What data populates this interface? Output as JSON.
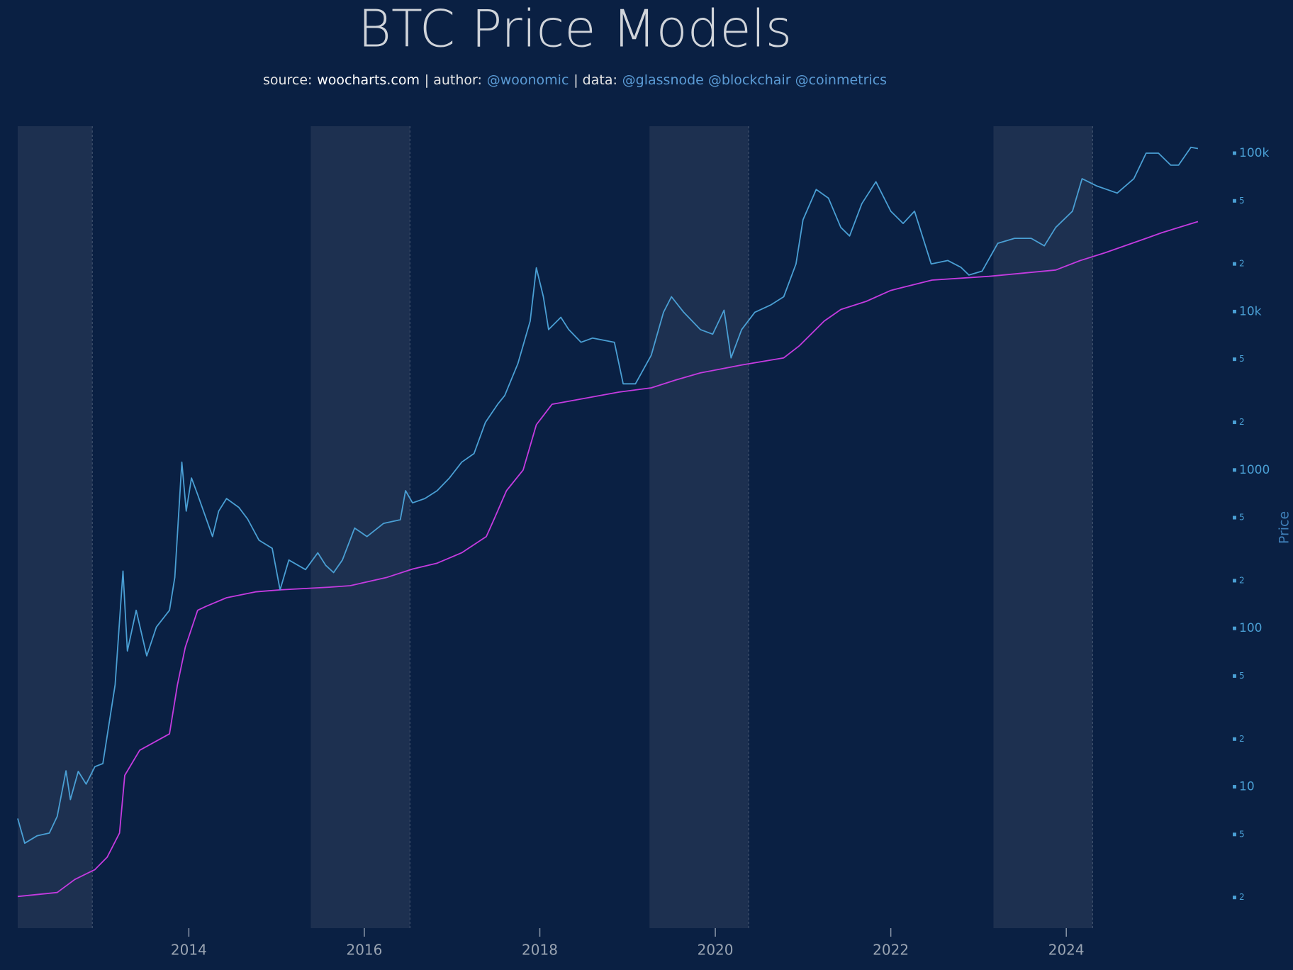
{
  "chart_data": {
    "type": "line",
    "title": "BTC Price Models",
    "subtitle": [
      {
        "text": "source:",
        "color": "#e6e6e6"
      },
      {
        "text": "woocharts.com",
        "color": "#ffffff"
      },
      {
        "text": "| author:",
        "color": "#e6e6e6"
      },
      {
        "text": "@woonomic",
        "color": "#5b9bd5"
      },
      {
        "text": "| data:",
        "color": "#e6e6e6"
      },
      {
        "text": "@glassnode @blockchair @coinmetrics",
        "color": "#5b9bd5"
      }
    ],
    "ylabel": "Price",
    "log_y": true,
    "grid": false,
    "xlim": [
      2012.05,
      2025.8
    ],
    "xticks": [
      2014,
      2016,
      2018,
      2020,
      2022,
      2024
    ],
    "ylim": [
      1.28,
      148000
    ],
    "yticks": [
      2,
      5,
      10,
      {
        "value": 20,
        "label": "2"
      },
      {
        "value": 50,
        "label": "5"
      },
      100,
      {
        "value": 200,
        "label": "2"
      },
      {
        "value": 500,
        "label": "5"
      },
      1000,
      {
        "value": 2000,
        "label": "2"
      },
      {
        "value": 5000,
        "label": "5"
      },
      {
        "value": 10000,
        "label": "10k"
      },
      {
        "value": 20000,
        "label": "2"
      },
      {
        "value": 50000,
        "label": "5"
      },
      {
        "value": 100000,
        "label": "100k"
      }
    ],
    "shaded_ranges": [
      [
        2012.05,
        2012.9
      ],
      [
        2015.39,
        2016.52
      ],
      [
        2019.25,
        2020.38
      ],
      [
        2023.17,
        2024.3
      ]
    ],
    "shade_color": "#1d3050",
    "series": [
      {
        "color": "#4a9fd4",
        "x": [
          2012.05,
          2012.13,
          2012.27,
          2012.41,
          2012.5,
          2012.6,
          2012.65,
          2012.74,
          2012.83,
          2012.93,
          2013.02,
          2013.16,
          2013.25,
          2013.3,
          2013.4,
          2013.52,
          2013.63,
          2013.78,
          2013.84,
          2013.92,
          2013.97,
          2014.03,
          2014.1,
          2014.27,
          2014.34,
          2014.43,
          2014.57,
          2014.67,
          2014.8,
          2014.95,
          2015.04,
          2015.14,
          2015.33,
          2015.47,
          2015.56,
          2015.65,
          2015.75,
          2015.89,
          2016.03,
          2016.22,
          2016.41,
          2016.47,
          2016.55,
          2016.69,
          2016.83,
          2016.97,
          2017.11,
          2017.25,
          2017.38,
          2017.52,
          2017.6,
          2017.75,
          2017.89,
          2017.96,
          2018.04,
          2018.1,
          2018.24,
          2018.33,
          2018.47,
          2018.6,
          2018.85,
          2018.95,
          2019.09,
          2019.27,
          2019.41,
          2019.5,
          2019.64,
          2019.83,
          2019.97,
          2020.1,
          2020.18,
          2020.3,
          2020.45,
          2020.63,
          2020.78,
          2020.92,
          2021.0,
          2021.15,
          2021.29,
          2021.43,
          2021.53,
          2021.67,
          2021.83,
          2022.0,
          2022.14,
          2022.27,
          2022.46,
          2022.65,
          2022.8,
          2022.89,
          2023.04,
          2023.22,
          2023.41,
          2023.6,
          2023.75,
          2023.88,
          2024.07,
          2024.18,
          2024.35,
          2024.58,
          2024.77,
          2024.91,
          2025.05,
          2025.19,
          2025.28,
          2025.42,
          2025.5
        ],
        "values": [
          6.3,
          4.4,
          4.9,
          5.1,
          6.5,
          12.6,
          8.3,
          12.5,
          10.4,
          13.4,
          14,
          44,
          230,
          72,
          130,
          67,
          102,
          130,
          210,
          1120,
          550,
          890,
          700,
          380,
          550,
          660,
          580,
          490,
          360,
          320,
          175,
          270,
          235,
          300,
          250,
          225,
          270,
          430,
          380,
          460,
          485,
          740,
          620,
          660,
          740,
          890,
          1120,
          1270,
          2000,
          2600,
          2950,
          4700,
          8700,
          18900,
          12400,
          7700,
          9200,
          7700,
          6400,
          6800,
          6400,
          3500,
          3500,
          5300,
          9900,
          12400,
          9900,
          7700,
          7200,
          10200,
          5100,
          7700,
          9900,
          11000,
          12400,
          20000,
          38000,
          59000,
          52000,
          34000,
          30000,
          48000,
          66000,
          43000,
          36000,
          43000,
          20000,
          21000,
          19000,
          17000,
          18000,
          27000,
          29000,
          29000,
          26000,
          34000,
          43000,
          69000,
          62000,
          56000,
          69000,
          100000,
          100000,
          84000,
          84000,
          109000,
          107000
        ]
      },
      {
        "color": "#c43be0",
        "x": [
          2012.05,
          2012.5,
          2012.7,
          2012.93,
          2013.07,
          2013.21,
          2013.27,
          2013.44,
          2013.78,
          2013.87,
          2013.96,
          2014.1,
          2014.2,
          2014.43,
          2014.76,
          2015.04,
          2015.6,
          2015.84,
          2016.26,
          2016.55,
          2016.83,
          2017.11,
          2017.39,
          2017.48,
          2017.62,
          2017.81,
          2017.96,
          2018.14,
          2018.43,
          2018.9,
          2019.27,
          2019.55,
          2019.83,
          2020.3,
          2020.78,
          2020.96,
          2021.24,
          2021.43,
          2021.72,
          2022.0,
          2022.47,
          2023.12,
          2023.88,
          2024.16,
          2024.44,
          2024.91,
          2025.09,
          2025.5
        ],
        "values": [
          2.03,
          2.15,
          2.6,
          3.0,
          3.6,
          5.1,
          11.8,
          17,
          21.6,
          44,
          76,
          130,
          138,
          156,
          170,
          175,
          182,
          186,
          210,
          237,
          258,
          300,
          380,
          490,
          740,
          1000,
          1930,
          2600,
          2780,
          3100,
          3300,
          3700,
          4100,
          4600,
          5100,
          6100,
          8700,
          10300,
          11600,
          13600,
          15800,
          16700,
          18300,
          21000,
          23500,
          29000,
          31500,
          37000
        ]
      }
    ]
  }
}
